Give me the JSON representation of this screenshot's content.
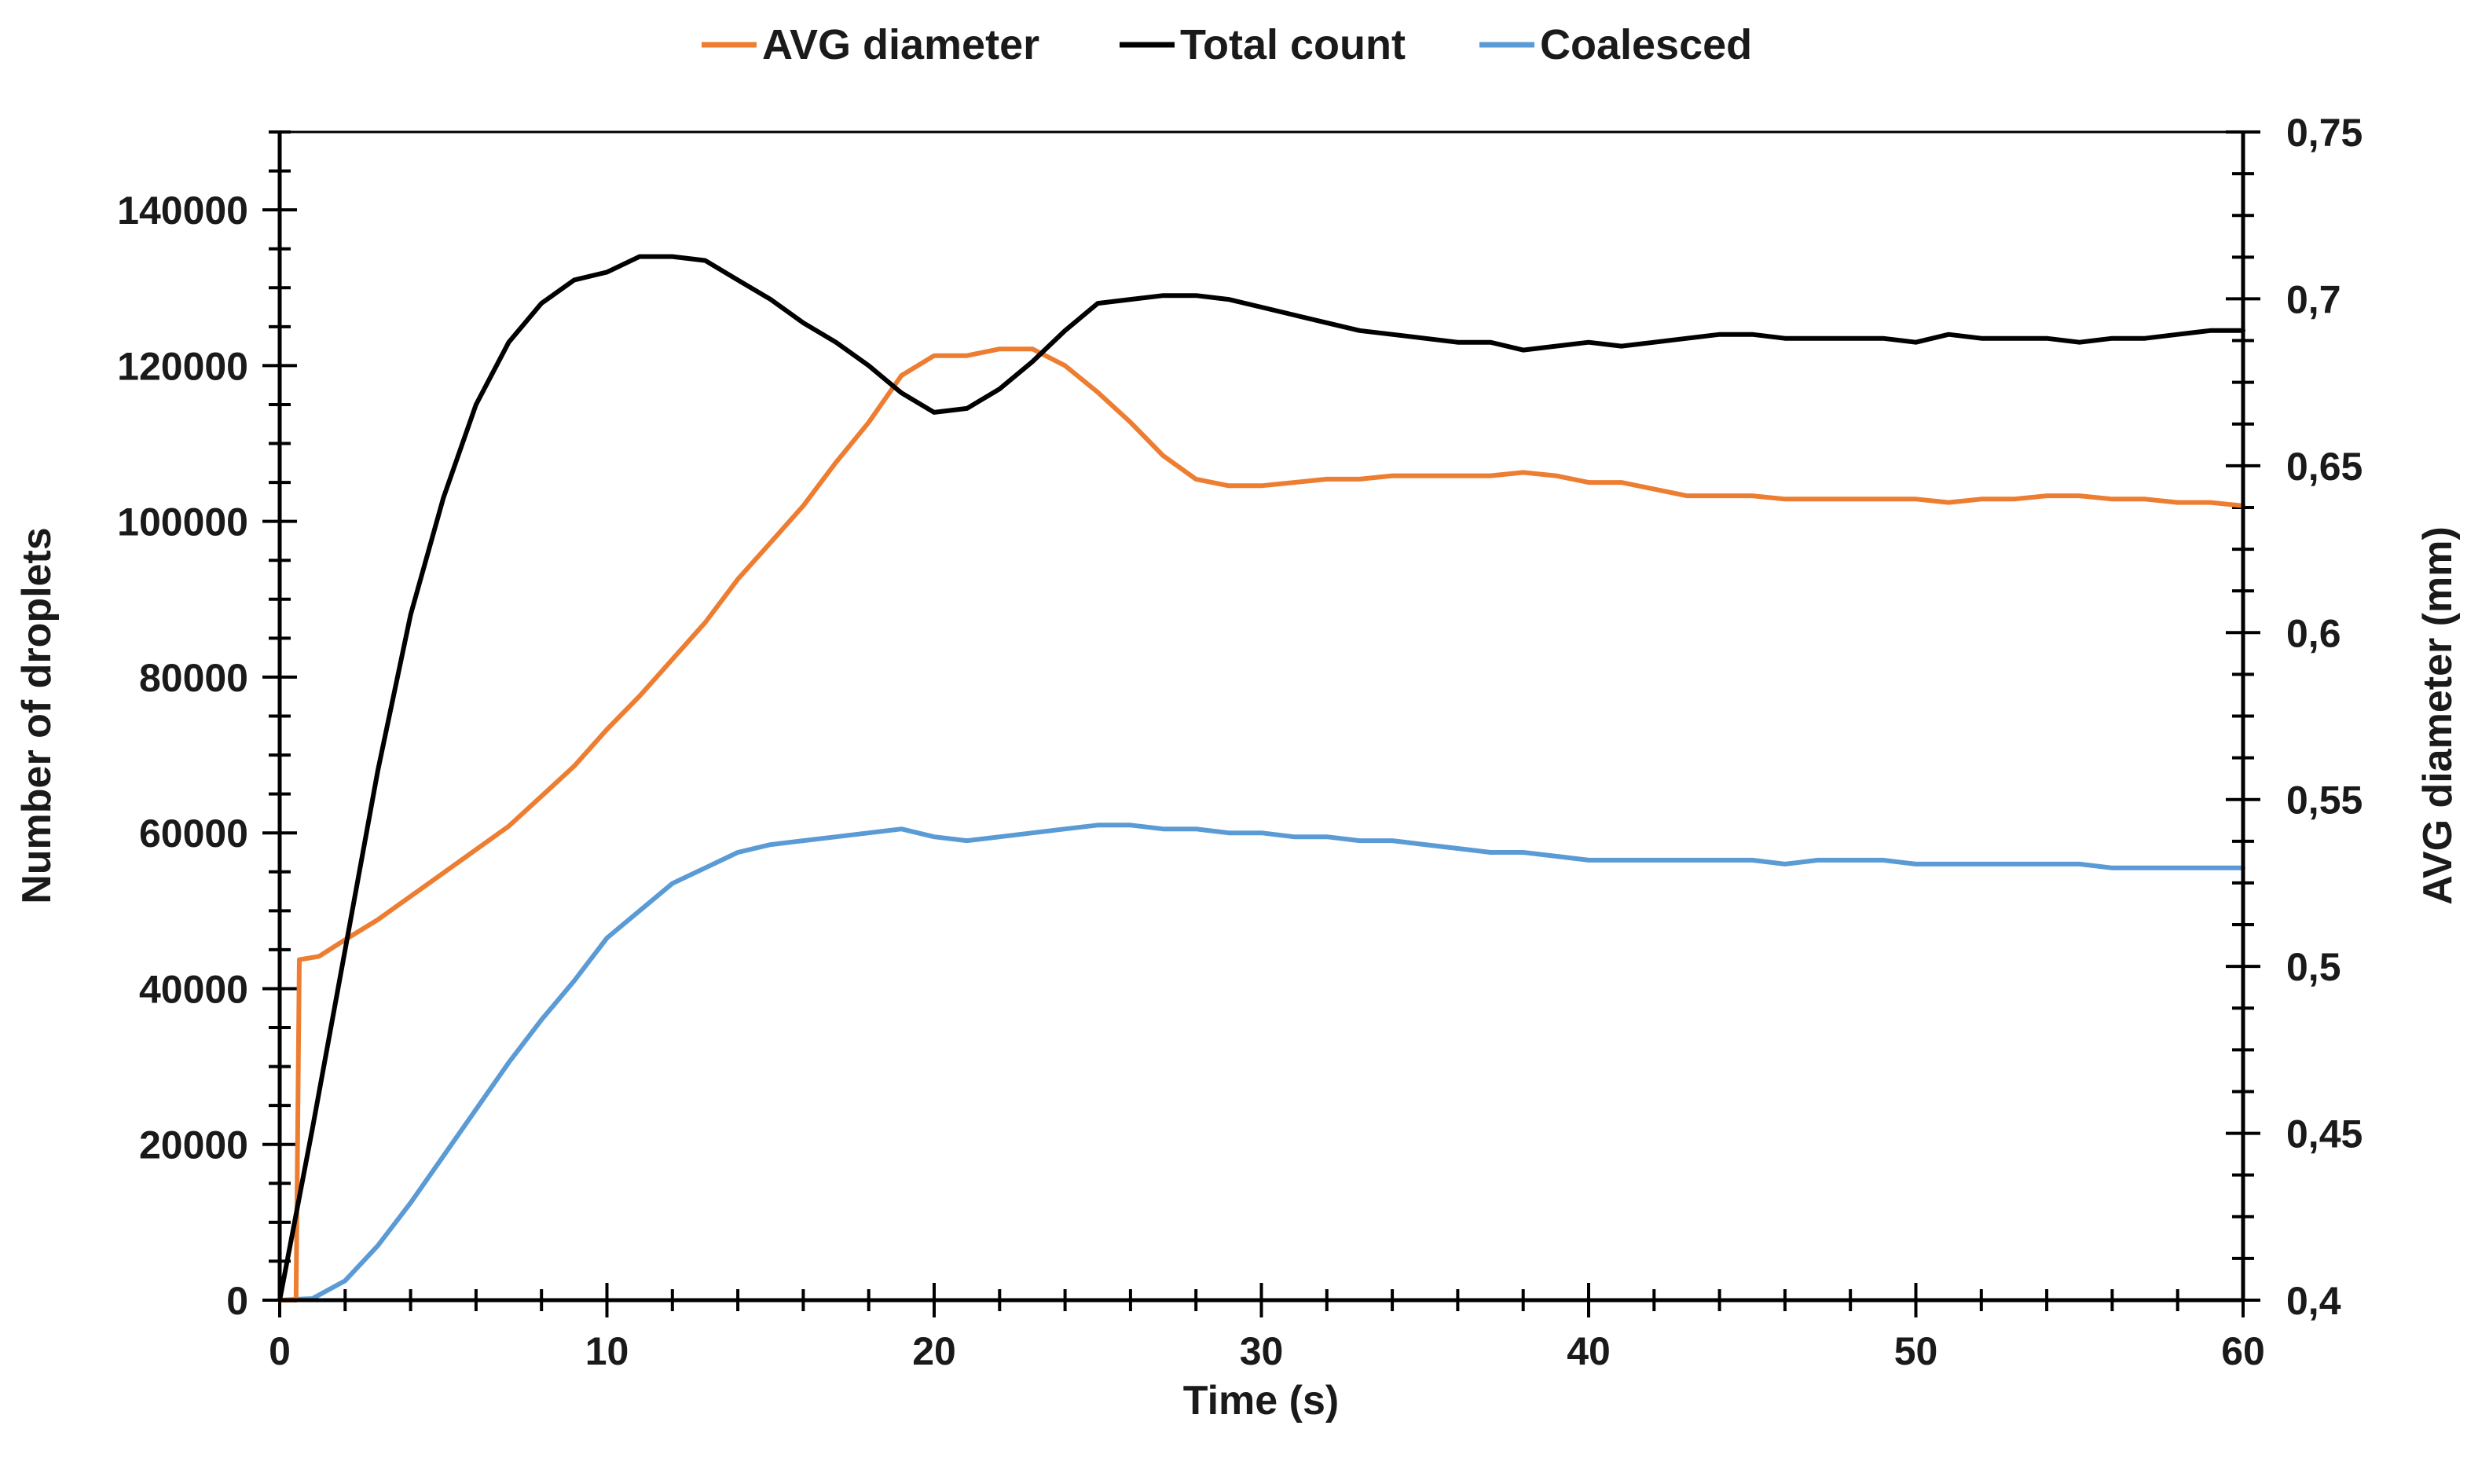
{
  "chart_data": {
    "type": "line",
    "title": "",
    "xlabel": "Time (s)",
    "ylabel_left": "Number of droplets",
    "ylabel_right": "AVG diameter (mm)",
    "xlim": [
      0,
      60
    ],
    "ylim_left": [
      0,
      150000
    ],
    "ylim_right": [
      0.4,
      0.75
    ],
    "x_ticks": [
      0,
      10,
      20,
      30,
      40,
      50,
      60
    ],
    "x_tick_labels": [
      "0",
      "10",
      "20",
      "30",
      "40",
      "50",
      "60"
    ],
    "y_left_ticks": [
      0,
      20000,
      40000,
      60000,
      80000,
      100000,
      120000,
      140000
    ],
    "y_left_tick_labels": [
      "0",
      "20000",
      "40000",
      "60000",
      "80000",
      "100000",
      "120000",
      "140000"
    ],
    "y_right_ticks": [
      0.4,
      0.45,
      0.5,
      0.55,
      0.6,
      0.65,
      0.7,
      0.75
    ],
    "y_right_tick_labels": [
      "0,4",
      "0,45",
      "0,5",
      "0,55",
      "0,6",
      "0,65",
      "0,7",
      "0,75"
    ],
    "grid": false,
    "legend": {
      "position": "top-center",
      "entries": [
        "AVG diameter",
        "Total count",
        "Coalesced"
      ]
    },
    "series": [
      {
        "name": "AVG diameter",
        "axis": "right",
        "color": "#ED7D31",
        "x": [
          0,
          0.3,
          0.5,
          0.6,
          1.2,
          2,
          3,
          4,
          5,
          6,
          7,
          8,
          9,
          10,
          11,
          12,
          13,
          14,
          15,
          16,
          17,
          18,
          19,
          20,
          21,
          22,
          23,
          24,
          25,
          26,
          27,
          28,
          29,
          30,
          31,
          32,
          33,
          34,
          35,
          36,
          37,
          38,
          39,
          40,
          41,
          42,
          43,
          44,
          45,
          46,
          47,
          48,
          49,
          50,
          51,
          52,
          53,
          54,
          55,
          56,
          57,
          58,
          59,
          60
        ],
        "values": [
          0.4,
          0.4,
          0.4,
          0.502,
          0.503,
          0.508,
          0.514,
          0.521,
          0.528,
          0.535,
          0.542,
          0.551,
          0.56,
          0.571,
          0.581,
          0.592,
          0.603,
          0.616,
          0.627,
          0.638,
          0.651,
          0.663,
          0.677,
          0.683,
          0.683,
          0.685,
          0.685,
          0.68,
          0.672,
          0.663,
          0.653,
          0.646,
          0.644,
          0.644,
          0.645,
          0.646,
          0.646,
          0.647,
          0.647,
          0.647,
          0.647,
          0.648,
          0.647,
          0.645,
          0.645,
          0.643,
          0.641,
          0.641,
          0.641,
          0.64,
          0.64,
          0.64,
          0.64,
          0.64,
          0.639,
          0.64,
          0.64,
          0.641,
          0.641,
          0.64,
          0.64,
          0.639,
          0.639,
          0.638
        ]
      },
      {
        "name": "Total count",
        "axis": "left",
        "color": "#000000",
        "x": [
          0,
          1,
          2,
          3,
          4,
          5,
          6,
          7,
          8,
          9,
          10,
          11,
          12,
          13,
          14,
          15,
          16,
          17,
          18,
          19,
          20,
          21,
          22,
          23,
          24,
          25,
          26,
          27,
          28,
          29,
          30,
          31,
          32,
          33,
          34,
          35,
          36,
          37,
          38,
          39,
          40,
          41,
          42,
          43,
          44,
          45,
          46,
          47,
          48,
          49,
          50,
          51,
          52,
          53,
          54,
          55,
          56,
          57,
          58,
          59,
          60
        ],
        "values": [
          0,
          22000,
          45000,
          68000,
          88000,
          103000,
          115000,
          123000,
          128000,
          131000,
          132000,
          134000,
          134000,
          133500,
          131000,
          128500,
          125500,
          123000,
          120000,
          116500,
          114000,
          114500,
          117000,
          120500,
          124500,
          128000,
          128500,
          129000,
          129000,
          128500,
          127500,
          126500,
          125500,
          124500,
          124000,
          123500,
          123000,
          123000,
          122000,
          122500,
          123000,
          122500,
          123000,
          123500,
          124000,
          124000,
          123500,
          123500,
          123500,
          123500,
          123000,
          124000,
          123500,
          123500,
          123500,
          123000,
          123500,
          123500,
          124000,
          124500,
          124500
        ]
      },
      {
        "name": "Coalesced",
        "axis": "left",
        "color": "#5B9BD5",
        "x": [
          0,
          1,
          2,
          3,
          4,
          5,
          6,
          7,
          8,
          9,
          10,
          11,
          12,
          13,
          14,
          15,
          16,
          17,
          18,
          19,
          20,
          21,
          22,
          23,
          24,
          25,
          26,
          27,
          28,
          29,
          30,
          31,
          32,
          33,
          34,
          35,
          36,
          37,
          38,
          39,
          40,
          41,
          42,
          43,
          44,
          45,
          46,
          47,
          48,
          49,
          50,
          51,
          52,
          53,
          54,
          55,
          56,
          57,
          58,
          59,
          60
        ],
        "values": [
          0,
          200,
          2500,
          7000,
          12500,
          18500,
          24500,
          30500,
          36000,
          41000,
          46500,
          50000,
          53500,
          55500,
          57500,
          58500,
          59000,
          59500,
          60000,
          60500,
          59500,
          59000,
          59500,
          60000,
          60500,
          61000,
          61000,
          60500,
          60500,
          60000,
          60000,
          59500,
          59500,
          59000,
          59000,
          58500,
          58000,
          57500,
          57500,
          57000,
          56500,
          56500,
          56500,
          56500,
          56500,
          56500,
          56000,
          56500,
          56500,
          56500,
          56000,
          56000,
          56000,
          56000,
          56000,
          56000,
          55500,
          55500,
          55500,
          55500,
          55500
        ]
      }
    ]
  }
}
